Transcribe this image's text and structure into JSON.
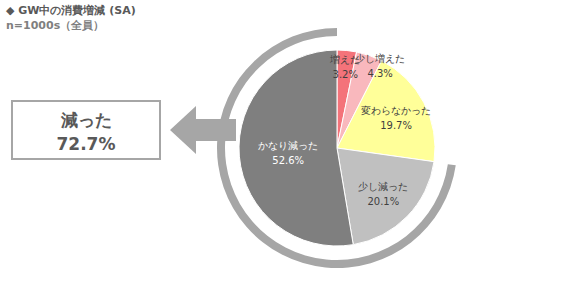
{
  "chart_data": {
    "type": "pie",
    "title": "◆ GW中の消費増減 (SA)",
    "subtitle": "n=1000s（全員）",
    "categories": [
      "増えた",
      "少し増えた",
      "変わらなかった",
      "少し減った",
      "かなり減った"
    ],
    "values": [
      3.2,
      4.3,
      19.7,
      20.1,
      52.6
    ],
    "value_labels": [
      "3.2%",
      "4.3%",
      "19.7%",
      "20.1%",
      "52.6%"
    ],
    "colors": [
      "#f4737a",
      "#f9b8bd",
      "#ffff99",
      "#c0c0c0",
      "#7f7f7f"
    ],
    "data_labels": true,
    "annotations": [
      {
        "text": "減った",
        "value": 72.7,
        "label": "72.7%"
      }
    ]
  }
}
